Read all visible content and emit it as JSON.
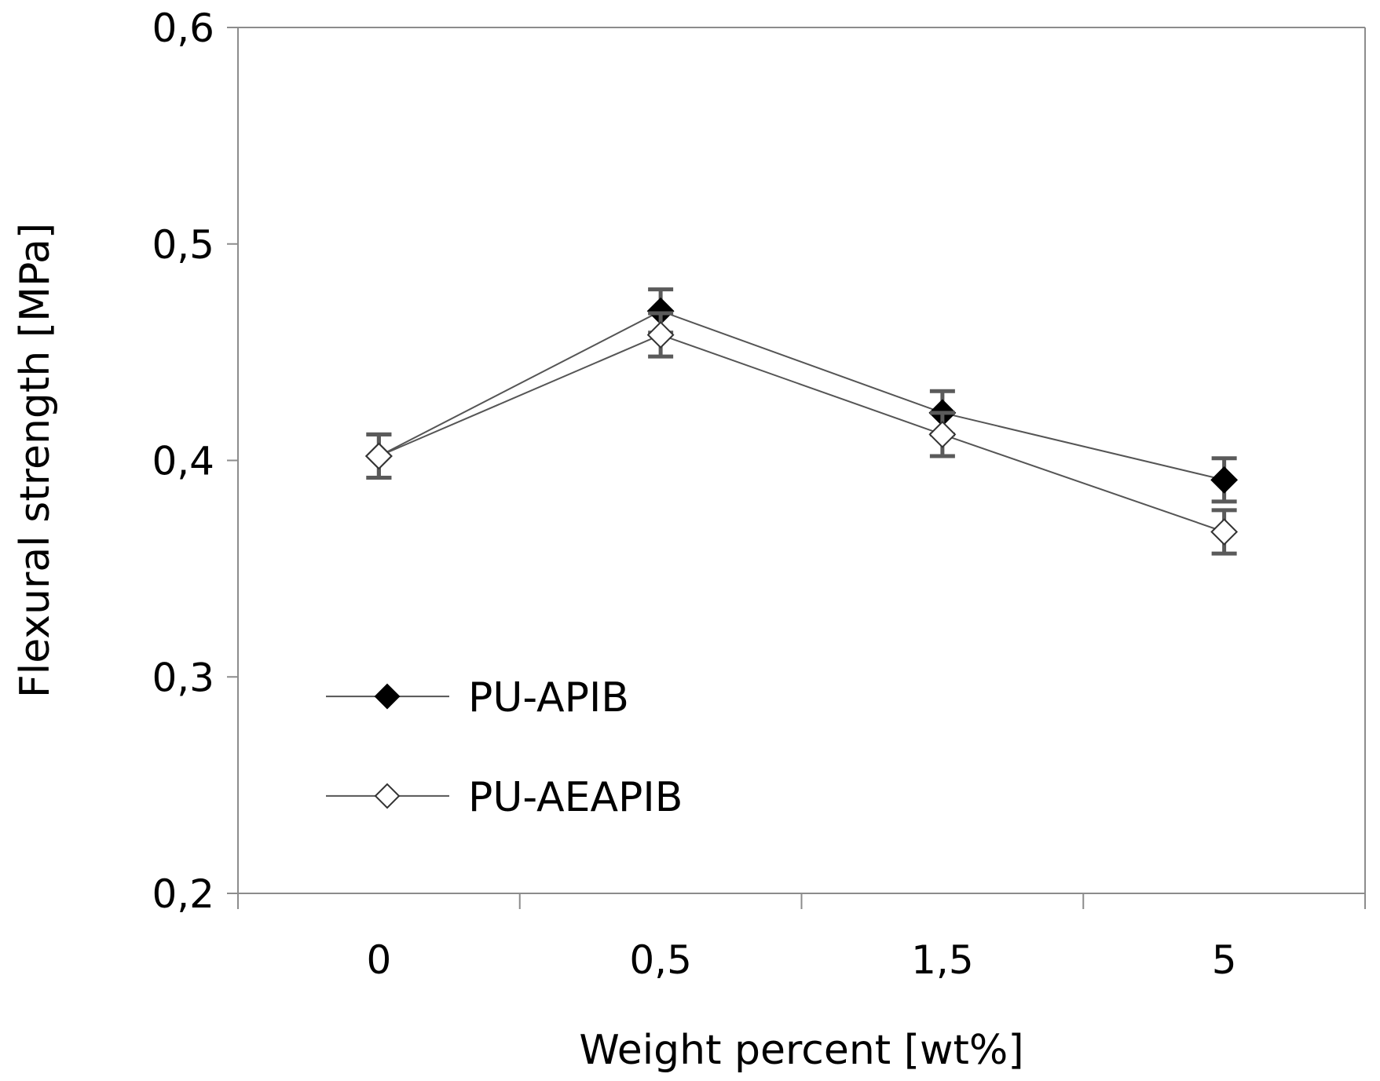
{
  "chart_data": {
    "type": "line",
    "categories": [
      "0",
      "0,5",
      "1,5",
      "5"
    ],
    "xlabel": "Weight percent [wt%]",
    "ylabel": "Flexural strength [MPa]",
    "ylim": [
      0.2,
      0.6
    ],
    "yticks": [
      0.2,
      0.3,
      0.4,
      0.5,
      0.6
    ],
    "ytick_labels": [
      "0,2",
      "0,3",
      "0,4",
      "0,5",
      "0,6"
    ],
    "grid": false,
    "legend_position": "lower-left",
    "series": [
      {
        "name": "PU-APIB",
        "marker": "filled-diamond",
        "values": [
          0.402,
          0.469,
          0.422,
          0.391
        ],
        "errors": [
          0.01,
          0.01,
          0.01,
          0.01
        ]
      },
      {
        "name": "PU-AEAPIB",
        "marker": "open-diamond",
        "values": [
          0.402,
          0.458,
          0.412,
          0.367
        ],
        "errors": [
          0.01,
          0.01,
          0.01,
          0.01
        ]
      }
    ]
  }
}
